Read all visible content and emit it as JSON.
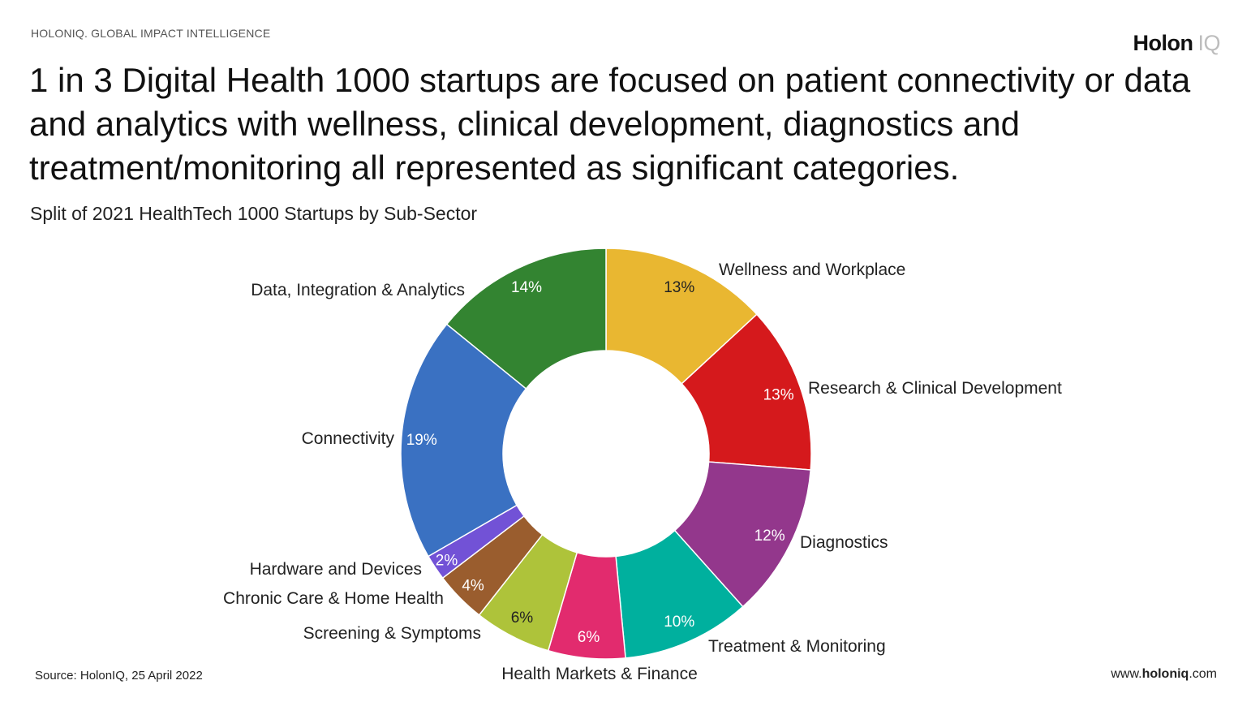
{
  "header": {
    "topline": "HOLONIQ. GLOBAL IMPACT INTELLIGENCE",
    "logo_main": "Holon",
    "logo_suffix": "IQ",
    "headline": "1 in 3 Digital Health 1000 startups are focused on patient connectivity or data and analytics with wellness, clinical development, diagnostics and treatment/monitoring all represented as significant categories.",
    "subtitle": "Split of 2021 HealthTech 1000 Startups by Sub-Sector"
  },
  "footer": {
    "source": "Source: HolonIQ, 25 April 2022",
    "site_prefix": "www.",
    "site_brand": "holoniq",
    "site_suffix": ".com"
  },
  "chart_data": {
    "type": "pie",
    "style": "donut",
    "title": "Split of 2021 HealthTech 1000 Startups by Sub-Sector",
    "slices": [
      {
        "name": "Wellness and Workplace",
        "value": 13,
        "label": "13%",
        "color": "#E9B731"
      },
      {
        "name": "Research & Clinical Development",
        "value": 13,
        "label": "13%",
        "color": "#D5191C"
      },
      {
        "name": "Diagnostics",
        "value": 12,
        "label": "12%",
        "color": "#93378C"
      },
      {
        "name": "Treatment & Monitoring",
        "value": 10,
        "label": "10%",
        "color": "#00B09E"
      },
      {
        "name": "Health Markets & Finance",
        "value": 6,
        "label": "6%",
        "color": "#E22B6E"
      },
      {
        "name": "Screening & Symptoms",
        "value": 6,
        "label": "6%",
        "color": "#AEC33A"
      },
      {
        "name": "Chronic Care & Home Health",
        "value": 4,
        "label": "4%",
        "color": "#9A5D2E"
      },
      {
        "name": "Hardware and Devices",
        "value": 2,
        "label": "2%",
        "color": "#7252D6"
      },
      {
        "name": "Connectivity",
        "value": 19,
        "label": "19%",
        "color": "#3A71C2"
      },
      {
        "name": "Data, Integration & Analytics",
        "value": 14,
        "label": "14%",
        "color": "#338431"
      }
    ]
  }
}
